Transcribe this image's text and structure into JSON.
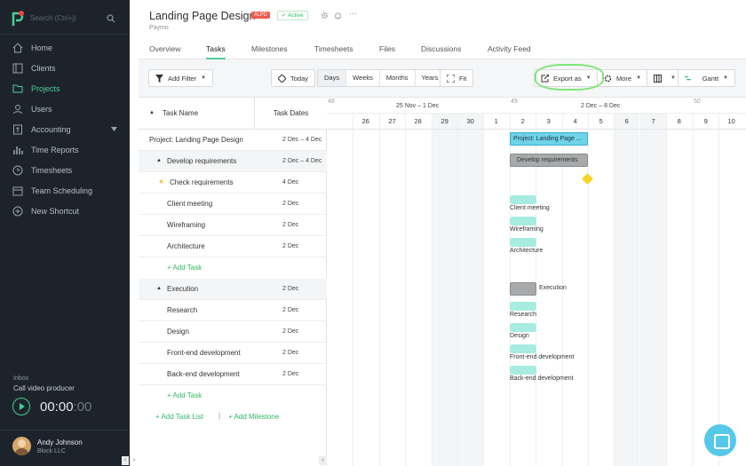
{
  "colors": {
    "sidebar_bg": "#1c232b",
    "accent": "#4ccf9a",
    "task_bar": "#a6ece0",
    "main_bar": "#6ed3e8",
    "milestone": "#f9d422",
    "badge": "#f05a4a"
  },
  "sidebar": {
    "search_placeholder": "Search (Ctrl+j)",
    "items": [
      {
        "label": "Home",
        "icon": "home-icon"
      },
      {
        "label": "Clients",
        "icon": "clients-icon"
      },
      {
        "label": "Projects",
        "icon": "folder-icon",
        "active": true
      },
      {
        "label": "Users",
        "icon": "user-icon"
      },
      {
        "label": "Accounting",
        "icon": "accounting-icon"
      },
      {
        "label": "Time Reports",
        "icon": "bar-chart-icon"
      },
      {
        "label": "Timesheets",
        "icon": "clock-icon"
      },
      {
        "label": "Team Scheduling",
        "icon": "calendar-icon"
      },
      {
        "label": "New Shortcut",
        "icon": "plus-circle-icon"
      }
    ],
    "inbox_label": "Inbox",
    "inbox_task": "Call video producer",
    "timer_main": "00:00",
    "timer_dim": ":00",
    "user_name": "Andy Johnson",
    "user_company": "Block LLC"
  },
  "header": {
    "title": "Landing Page Design",
    "badge": "#LPD",
    "status": "Active",
    "client": "Paymo"
  },
  "tabs": [
    "Overview",
    "Tasks",
    "Milestones",
    "Timesheets",
    "Files",
    "Discussions",
    "Activity Feed"
  ],
  "toolbar": {
    "add_filter": "Add Filter",
    "today": "Today",
    "views": [
      "Days",
      "Weeks",
      "Months",
      "Years"
    ],
    "fit": "Fit",
    "export": "Export as",
    "more": "More",
    "gantt": "Gantt"
  },
  "table": {
    "col_name": "Task Name",
    "col_dates": "Task Dates",
    "project": {
      "name": "Project: Landing Page Design",
      "dates": "2 Dec – 4 Dec"
    },
    "lists": [
      {
        "name": "Develop requirements",
        "dates": "2 Dec – 4 Dec",
        "tasks": [
          {
            "name": "Check requirements",
            "dates": "4 Dec",
            "milestone": true
          },
          {
            "name": "Client meeting",
            "dates": "2 Dec"
          },
          {
            "name": "Wireframing",
            "dates": "2 Dec"
          },
          {
            "name": "Architecture",
            "dates": "2 Dec"
          }
        ]
      },
      {
        "name": "Execution",
        "dates": "2 Dec",
        "tasks": [
          {
            "name": "Research",
            "dates": "2 Dec"
          },
          {
            "name": "Design",
            "dates": "2 Dec"
          },
          {
            "name": "Front-end development",
            "dates": "2 Dec"
          },
          {
            "name": "Back-end development",
            "dates": "2 Dec"
          }
        ]
      }
    ],
    "add_task": "+ Add Task",
    "add_task_list": "+ Add Task List",
    "add_milestone": "+ Add Milestone"
  },
  "gantt": {
    "weeks": [
      {
        "num": "48",
        "label": "25 Nov – 1 Dec"
      },
      {
        "num": "49",
        "label": "2 Dec – 8 Dec"
      },
      {
        "num": "50"
      }
    ],
    "days": [
      "26",
      "27",
      "28",
      "29",
      "30",
      "1",
      "2",
      "3",
      "4",
      "5",
      "6",
      "7",
      "8",
      "9",
      "10"
    ],
    "project_bar": "Project: Landing Page ...",
    "group_bar_1": "Develop requirements",
    "group_bar_2": "Execution"
  }
}
